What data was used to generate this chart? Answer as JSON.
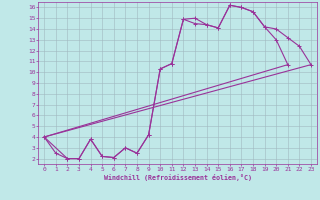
{
  "xlabel": "Windchill (Refroidissement éolien,°C)",
  "background_color": "#c0e8e8",
  "grid_color": "#a0b8c0",
  "line_color": "#993399",
  "xlim": [
    -0.5,
    23.5
  ],
  "ylim": [
    1.5,
    16.5
  ],
  "xticks": [
    0,
    1,
    2,
    3,
    4,
    5,
    6,
    7,
    8,
    9,
    10,
    11,
    12,
    13,
    14,
    15,
    16,
    17,
    18,
    19,
    20,
    21,
    22,
    23
  ],
  "yticks": [
    2,
    3,
    4,
    5,
    6,
    7,
    8,
    9,
    10,
    11,
    12,
    13,
    14,
    15,
    16
  ],
  "line1_x": [
    0,
    1,
    2,
    3,
    4,
    5,
    6,
    7,
    8,
    9,
    10,
    11,
    12,
    13,
    14,
    15,
    16,
    17,
    18,
    19,
    20,
    21
  ],
  "line1_y": [
    4,
    2.5,
    2,
    2,
    3.8,
    2.2,
    2.1,
    3.0,
    2.5,
    4.2,
    10.3,
    10.8,
    14.9,
    15.0,
    14.4,
    14.1,
    16.2,
    16.0,
    15.6,
    14.2,
    13.0,
    10.7
  ],
  "line2_x": [
    0,
    2,
    3,
    4,
    5,
    6,
    7,
    8,
    9,
    10,
    11,
    12,
    13,
    14,
    15,
    16,
    17,
    18,
    19,
    20,
    21,
    22,
    23
  ],
  "line2_y": [
    4,
    2,
    2,
    3.8,
    2.2,
    2.1,
    3.0,
    2.5,
    4.2,
    10.3,
    10.8,
    14.9,
    14.5,
    14.4,
    14.1,
    16.2,
    16.0,
    15.6,
    14.2,
    14.0,
    13.2,
    12.4,
    10.7
  ],
  "line3_x": [
    0,
    23
  ],
  "line3_y": [
    4,
    10.7
  ],
  "line4_x": [
    0,
    21
  ],
  "line4_y": [
    4,
    10.7
  ]
}
